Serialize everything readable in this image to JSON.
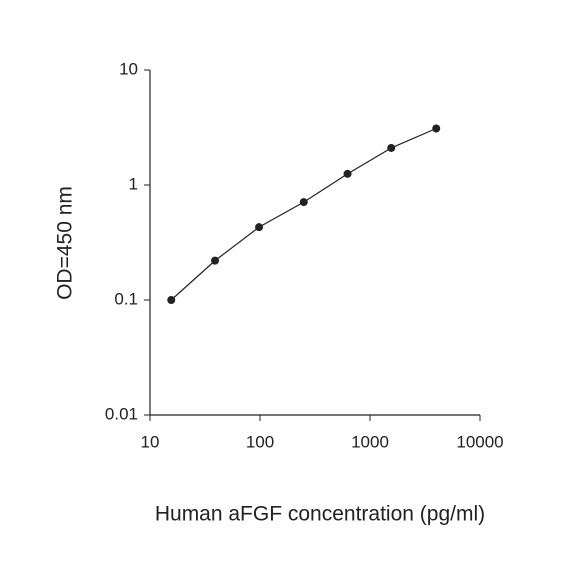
{
  "chart_data": {
    "type": "line",
    "log_x": true,
    "log_y": true,
    "x_label": "Human aFGF concentration (pg/ml)",
    "y_label": "OD=450 nm",
    "x": [
      15.6,
      39,
      98,
      250,
      625,
      1560,
      4000
    ],
    "series": [
      {
        "name": "aFGF",
        "color": "#222222",
        "values": [
          0.1,
          0.22,
          0.43,
          0.71,
          1.25,
          2.1,
          3.1
        ]
      }
    ],
    "xlim": [
      10,
      10000
    ],
    "xticks": [
      10,
      100,
      1000,
      10000
    ],
    "ylim": [
      0.01,
      10
    ],
    "yticks": [
      0.01,
      0.1,
      1,
      10
    ]
  }
}
